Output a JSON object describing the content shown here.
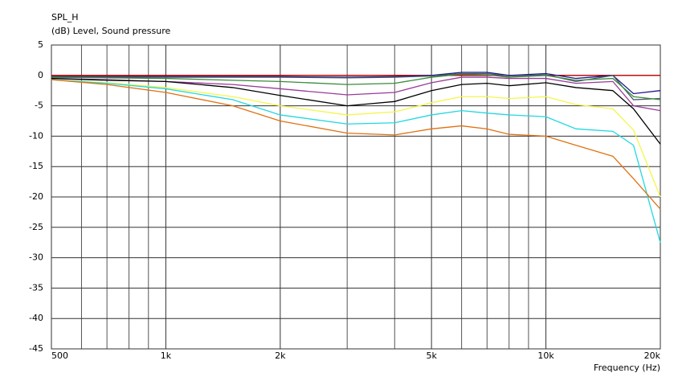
{
  "chart_data": {
    "type": "line",
    "title": "SPL_H",
    "subtitle": "(dB)  Level, Sound pressure",
    "x_label": "Frequency  (Hz)",
    "x_scale": "log",
    "grid": true,
    "xlim": [
      500,
      20000
    ],
    "ylim": [
      -45,
      5
    ],
    "xticks": [
      500,
      {
        "value": 1000,
        "label": "1k"
      },
      {
        "value": 2000,
        "label": "2k"
      },
      {
        "value": 5000,
        "label": "5k"
      },
      {
        "value": 10000,
        "label": "10k"
      },
      {
        "value": 20000,
        "label": "20k"
      }
    ],
    "xminorticks": [
      600,
      700,
      800,
      900,
      3000,
      4000,
      6000,
      7000,
      8000,
      9000
    ],
    "yticks": [
      5,
      0,
      -5,
      -10,
      -15,
      -20,
      -25,
      -30,
      -35,
      -40,
      -45
    ],
    "x": [
      500,
      700,
      1000,
      1500,
      2000,
      3000,
      4000,
      5000,
      6000,
      7000,
      8000,
      10000,
      12000,
      15000,
      17000,
      20000
    ],
    "series": [
      {
        "color": "#c00000",
        "values": [
          0,
          0,
          0,
          0,
          0,
          0,
          0,
          0,
          0,
          0,
          0,
          0,
          0,
          0,
          0,
          0
        ]
      },
      {
        "color": "#1a1a8c",
        "values": [
          -0.2,
          -0.2,
          -0.2,
          -0.2,
          -0.2,
          -0.3,
          -0.2,
          0,
          0.5,
          0.5,
          0,
          0.3,
          -0.5,
          0,
          -3,
          -2.5
        ]
      },
      {
        "color": "#4a5a6a",
        "values": [
          -0.3,
          -0.3,
          -0.3,
          -0.3,
          -0.3,
          -0.4,
          -0.3,
          -0.1,
          0.3,
          0.3,
          -0.1,
          0.1,
          -1,
          0,
          -4,
          -3.8
        ]
      },
      {
        "color": "#3a8a3a",
        "values": [
          -0.3,
          -0.4,
          -0.5,
          -0.8,
          -1,
          -1.5,
          -1.3,
          -0.3,
          0.2,
          0.1,
          -0.3,
          0,
          -0.8,
          -0.5,
          -3.5,
          -4
        ]
      },
      {
        "color": "#9a3a9a",
        "values": [
          -0.5,
          -0.7,
          -1,
          -1.5,
          -2.2,
          -3.2,
          -2.8,
          -1.2,
          -0.3,
          -0.3,
          -0.5,
          -0.5,
          -1.3,
          -1,
          -5,
          -5.8
        ]
      },
      {
        "color": "#000000",
        "values": [
          -0.5,
          -0.8,
          -1,
          -2,
          -3.3,
          -5,
          -4.3,
          -2.5,
          -1.5,
          -1.3,
          -1.7,
          -1.2,
          -2,
          -2.5,
          -5.5,
          -11.3
        ]
      },
      {
        "color": "#f5f54a",
        "values": [
          -0.7,
          -1.2,
          -2,
          -3.5,
          -5,
          -6.5,
          -6,
          -4.5,
          -3.5,
          -3.5,
          -3.8,
          -3.5,
          -4.8,
          -5.5,
          -9,
          -20
        ]
      },
      {
        "color": "#20d8e0",
        "values": [
          -0.7,
          -1.3,
          -2.2,
          -4,
          -6.5,
          -8,
          -7.8,
          -6.5,
          -5.8,
          -6.2,
          -6.5,
          -6.8,
          -8.8,
          -9.2,
          -11.5,
          -27.5
        ]
      },
      {
        "color": "#e07010",
        "values": [
          -0.7,
          -1.5,
          -2.8,
          -5,
          -7.5,
          -9.5,
          -9.8,
          -8.8,
          -8.3,
          -8.8,
          -9.7,
          -10,
          -11.5,
          -13.3,
          -17,
          -22
        ]
      }
    ]
  }
}
